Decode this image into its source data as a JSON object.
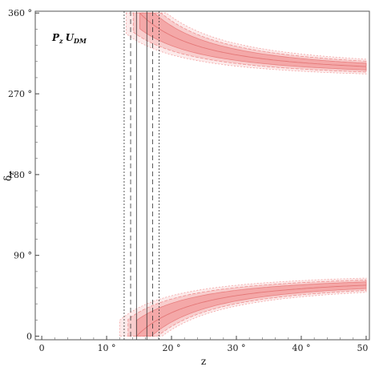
{
  "chart_data": {
    "type": "line",
    "title": "",
    "annotation": {
      "main": "P",
      "main_sub": "z",
      "second": "U",
      "second_sub": "DM"
    },
    "xlabel": "z",
    "ylabel": "δ",
    "ylabel_sub": "z",
    "xlim": [
      -1,
      50.5
    ],
    "ylim": [
      -4,
      362
    ],
    "x_ticks": [
      {
        "value": 0,
        "label": "0"
      },
      {
        "value": 10,
        "label": "10 °"
      },
      {
        "value": 20,
        "label": "20 °"
      },
      {
        "value": 30,
        "label": "30 °"
      },
      {
        "value": 40,
        "label": "40 °"
      },
      {
        "value": 50,
        "label": "50 °"
      }
    ],
    "y_ticks": [
      {
        "value": 0,
        "label": "0"
      },
      {
        "value": 90,
        "label": "90 °"
      },
      {
        "value": 180,
        "label": "180 °"
      },
      {
        "value": 270,
        "label": "270 °"
      },
      {
        "value": 360,
        "label": "360 °"
      }
    ],
    "grid": false,
    "band_color": "#f08a8a",
    "vertical_lines": [
      {
        "x": 14.6,
        "style": "solid"
      },
      {
        "x": 16.2,
        "style": "solid"
      },
      {
        "x": 13.7,
        "style": "dashed"
      },
      {
        "x": 17.1,
        "style": "dashed"
      },
      {
        "x": 12.7,
        "style": "dotted"
      },
      {
        "x": 18.1,
        "style": "dotted"
      }
    ],
    "upper_branch": {
      "asymptote": 290,
      "start_z": 15.1,
      "bands": [
        {
          "level": "inner",
          "start_z": 15.1,
          "half_width_inf": 2.5
        },
        {
          "level": "mid",
          "start_z": 14.1,
          "half_width_inf": 4.2
        },
        {
          "level": "outer",
          "start_z": 13.0,
          "half_width_inf": 6.0
        }
      ]
    },
    "lower_branch": {
      "asymptote": 66,
      "start_z": 14.6,
      "bands": [
        {
          "level": "inner",
          "start_z": 14.6,
          "half_width_inf": 2.5
        },
        {
          "level": "mid",
          "start_z": 13.3,
          "half_width_inf": 4.2
        },
        {
          "level": "outer",
          "start_z": 12.0,
          "half_width_inf": 6.0
        }
      ]
    }
  }
}
